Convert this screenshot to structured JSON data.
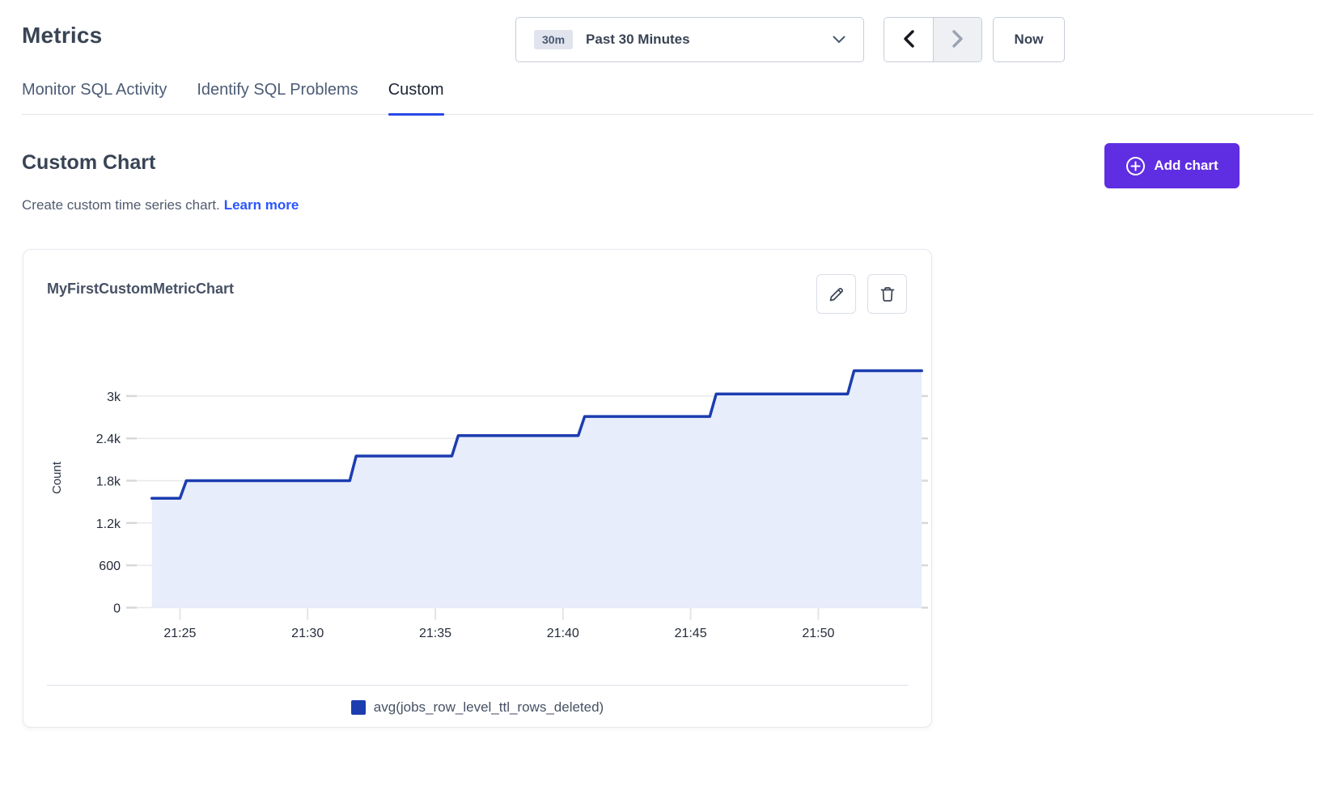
{
  "page": {
    "title": "Metrics"
  },
  "toolbar": {
    "range_badge": "30m",
    "range_label": "Past 30 Minutes",
    "prev_icon": "chevron-left-icon",
    "next_icon": "chevron-right-icon",
    "now_label": "Now"
  },
  "tabs": [
    {
      "label": "Monitor SQL Activity",
      "active": false
    },
    {
      "label": "Identify SQL Problems",
      "active": false
    },
    {
      "label": "Custom",
      "active": true
    }
  ],
  "section": {
    "heading": "Custom Chart",
    "description": "Create custom time series chart.",
    "link_label": "Learn more",
    "add_button_label": "Add chart",
    "add_button_icon": "circled-plus-icon"
  },
  "chart_card": {
    "title": "MyFirstCustomMetricChart",
    "actions": [
      "edit-pencil-icon",
      "delete-trash-icon"
    ]
  },
  "chart_data": {
    "type": "area",
    "title": "MyFirstCustomMetricChart",
    "xlabel": "",
    "ylabel": "Count",
    "ylim": [
      0,
      3780
    ],
    "x_unit": "minutes after 21:00",
    "x_range": [
      23.9,
      54.05
    ],
    "grid": true,
    "legend_position": "bottom",
    "yticks": [
      {
        "v": 0,
        "label": "0"
      },
      {
        "v": 600,
        "label": "600"
      },
      {
        "v": 1200,
        "label": "1.2k"
      },
      {
        "v": 1800,
        "label": "1.8k"
      },
      {
        "v": 2400,
        "label": "2.4k"
      },
      {
        "v": 3000,
        "label": "3k"
      }
    ],
    "xticks": [
      {
        "t": 25,
        "label": "21:25"
      },
      {
        "t": 30,
        "label": "21:30"
      },
      {
        "t": 35,
        "label": "21:35"
      },
      {
        "t": 40,
        "label": "21:40"
      },
      {
        "t": 45,
        "label": "21:45"
      },
      {
        "t": 50,
        "label": "21:50"
      }
    ],
    "series": [
      {
        "name": "avg(jobs_row_level_ttl_rows_deleted)",
        "color": "#1c3db0",
        "fill": "#e8edfb",
        "points": [
          [
            23.9,
            1550
          ],
          [
            25.0,
            1550
          ],
          [
            25.25,
            1800
          ],
          [
            31.65,
            1800
          ],
          [
            31.9,
            2150
          ],
          [
            35.65,
            2150
          ],
          [
            35.9,
            2440
          ],
          [
            40.6,
            2440
          ],
          [
            40.85,
            2710
          ],
          [
            45.75,
            2710
          ],
          [
            46.0,
            3030
          ],
          [
            51.15,
            3030
          ],
          [
            51.4,
            3360
          ],
          [
            54.05,
            3360
          ]
        ]
      }
    ]
  },
  "colors": {
    "accent_purple": "#5f2ee2",
    "accent_blue": "#2949e5",
    "link_blue": "#2b55ff",
    "line_blue": "#1c3db0",
    "area_fill": "#e8edfb"
  }
}
